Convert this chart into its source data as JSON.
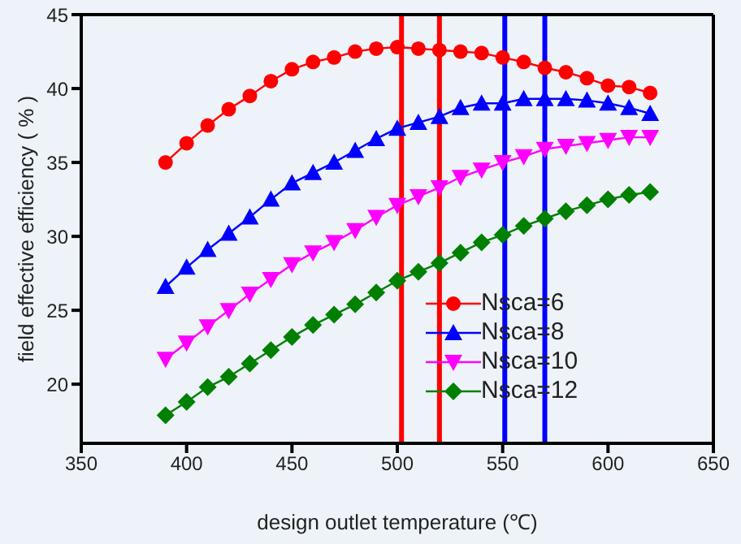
{
  "chart_data": {
    "type": "line",
    "xlabel": "design outlet temperature (℃)",
    "ylabel": "field effective efficiency ( % )",
    "x": [
      390,
      400,
      410,
      420,
      430,
      440,
      450,
      460,
      470,
      480,
      490,
      500,
      510,
      520,
      530,
      540,
      550,
      560,
      570,
      580,
      590,
      600,
      610,
      620
    ],
    "series": [
      {
        "name": "Nsca=6",
        "color": "#ff0000",
        "marker": "circle",
        "values": [
          35.0,
          36.3,
          37.5,
          38.6,
          39.5,
          40.5,
          41.3,
          41.8,
          42.1,
          42.5,
          42.7,
          42.8,
          42.7,
          42.6,
          42.5,
          42.4,
          42.1,
          41.8,
          41.4,
          41.1,
          40.7,
          40.2,
          40.1,
          39.7
        ]
      },
      {
        "name": "Nsca=8",
        "color": "#0000ff",
        "marker": "triangle",
        "values": [
          26.6,
          27.9,
          29.1,
          30.2,
          31.3,
          32.5,
          33.6,
          34.3,
          35.0,
          35.8,
          36.6,
          37.3,
          37.7,
          38.1,
          38.7,
          39.0,
          39.0,
          39.3,
          39.3,
          39.3,
          39.2,
          39.0,
          38.7,
          38.3
        ]
      },
      {
        "name": "Nsca=10",
        "color": "#ff00ff",
        "marker": "triangle-down",
        "values": [
          21.7,
          22.8,
          23.9,
          25.0,
          26.1,
          27.1,
          28.1,
          28.9,
          29.6,
          30.4,
          31.3,
          32.1,
          32.7,
          33.3,
          34.0,
          34.5,
          35.0,
          35.4,
          35.9,
          36.1,
          36.3,
          36.5,
          36.7,
          36.7
        ]
      },
      {
        "name": "Nsca=12",
        "color": "#008000",
        "marker": "diamond",
        "values": [
          17.9,
          18.8,
          19.8,
          20.5,
          21.4,
          22.3,
          23.2,
          24.0,
          24.7,
          25.4,
          26.2,
          27.0,
          27.6,
          28.2,
          28.9,
          29.6,
          30.1,
          30.7,
          31.2,
          31.7,
          32.1,
          32.5,
          32.8,
          33.0
        ]
      }
    ],
    "xlim": [
      350,
      650
    ],
    "xticks": [
      350,
      400,
      450,
      500,
      550,
      600,
      650
    ],
    "ylim": [
      16,
      45
    ],
    "yticks": [
      20,
      25,
      30,
      35,
      40,
      45
    ],
    "ref_lines": [
      {
        "axis": "x",
        "value": 502,
        "color": "#ff0000"
      },
      {
        "axis": "x",
        "value": 520,
        "color": "#ff0000"
      },
      {
        "axis": "x",
        "value": 551,
        "color": "#0000ff"
      },
      {
        "axis": "x",
        "value": 570,
        "color": "#0000ff"
      }
    ],
    "grid": false,
    "legend": "bottom right",
    "line_style": "solid"
  }
}
